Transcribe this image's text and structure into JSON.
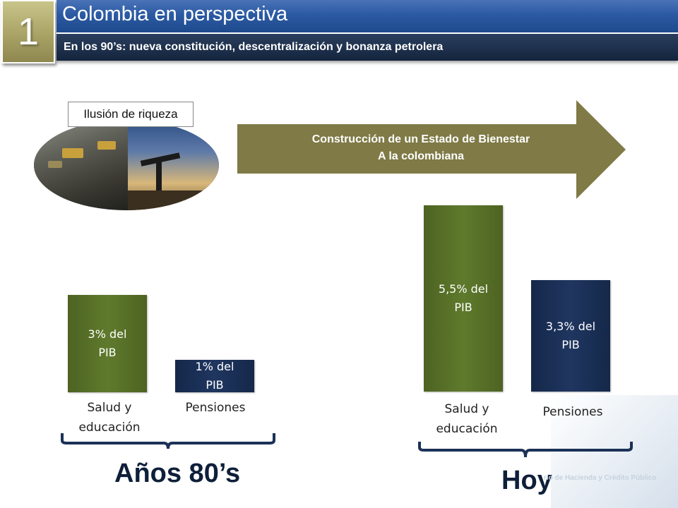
{
  "header": {
    "number": "1",
    "title": "Colombia en perspectiva",
    "subtitle": "En los 90’s: nueva constitución, descentralización y bonanza petrolera"
  },
  "illustration": {
    "label": "Ilusión de riqueza"
  },
  "arrow": {
    "line1": "Construcción de un Estado de Bienestar",
    "line2": "A la colombiana",
    "color": "#7f7a46"
  },
  "chart_data": {
    "type": "bar",
    "title": "",
    "unit": "% del PIB",
    "groups": [
      {
        "name": "Años 80’s",
        "bars": [
          {
            "category": "Salud y educación",
            "value": 3.0,
            "label": "3% del PIB",
            "color": "#5b7429"
          },
          {
            "category": "Pensiones",
            "value": 1.0,
            "label": "1% del PIB",
            "color": "#1b3157"
          }
        ]
      },
      {
        "name": "Hoy",
        "bars": [
          {
            "category": "Salud y educación",
            "value": 5.5,
            "label": "5,5% del PIB",
            "color": "#5b7429"
          },
          {
            "category": "Pensiones",
            "value": 3.3,
            "label": "3,3% del PIB",
            "color": "#1b3157"
          }
        ]
      }
    ]
  },
  "labels": {
    "g1_bar1_line1": "Salud y",
    "g1_bar1_line2": "educación",
    "g1_bar2": "Pensiones",
    "g2_bar1_line1": "Salud y",
    "g2_bar1_line2": "educación",
    "g2_bar2": "Pensiones",
    "g1_v1_line1": "3% del",
    "g1_v1_line2": "PIB",
    "g1_v2_line1": "1% del",
    "g1_v2_line2": "PIB",
    "g2_v1_line1": "5,5% del",
    "g2_v1_line2": "PIB",
    "g2_v2_line1": "3,3% del",
    "g2_v2_line2": "PIB",
    "group1": "Años 80’s",
    "group2": "Hoy"
  },
  "watermark": "rio de Hacienda y Crédito Público"
}
